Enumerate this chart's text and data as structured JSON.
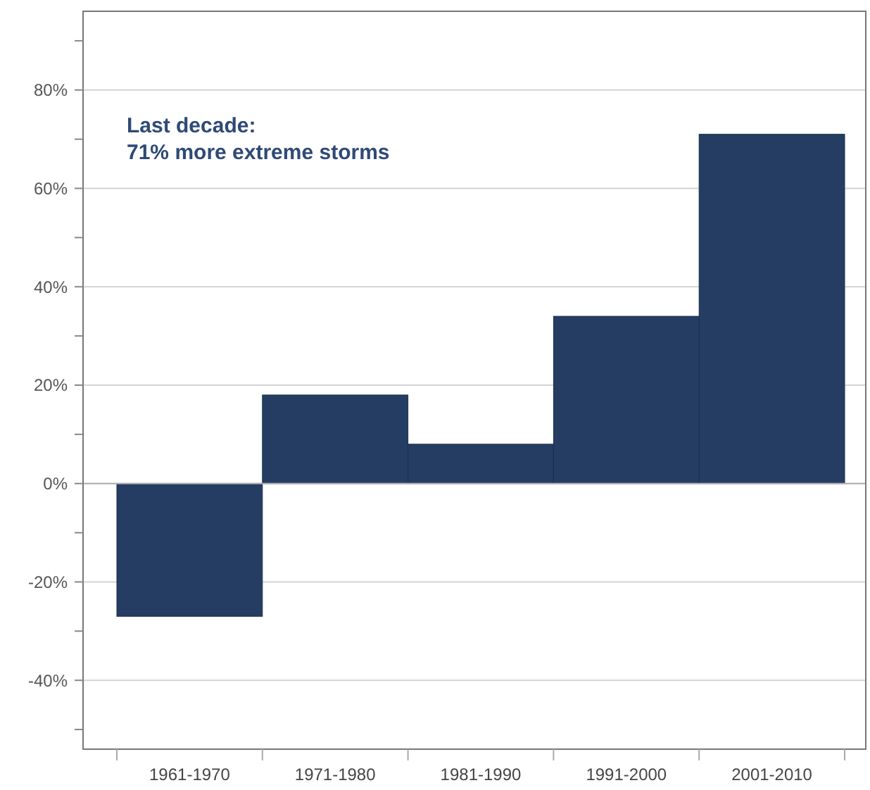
{
  "chart_data": {
    "type": "bar",
    "categories": [
      "1961-1970",
      "1971-1980",
      "1981-1990",
      "1991-2000",
      "2001-2010"
    ],
    "values": [
      -27,
      18,
      8,
      34,
      71
    ],
    "color": "#253d63",
    "ylim": [
      -54,
      96
    ],
    "yticks": [
      {
        "value": -50,
        "label": null
      },
      {
        "value": -40,
        "label": "-40%"
      },
      {
        "value": -30,
        "label": null
      },
      {
        "value": -20,
        "label": "-20%"
      },
      {
        "value": -10,
        "label": null
      },
      {
        "value": 0,
        "label": "0%"
      },
      {
        "value": 10,
        "label": null
      },
      {
        "value": 20,
        "label": "20%"
      },
      {
        "value": 30,
        "label": null
      },
      {
        "value": 40,
        "label": "40%"
      },
      {
        "value": 50,
        "label": null
      },
      {
        "value": 60,
        "label": "60%"
      },
      {
        "value": 70,
        "label": null
      },
      {
        "value": 80,
        "label": "80%"
      },
      {
        "value": 90,
        "label": null
      }
    ],
    "grid": "y",
    "annotations": [
      "Last decade:\n71% more extreme storms"
    ]
  }
}
